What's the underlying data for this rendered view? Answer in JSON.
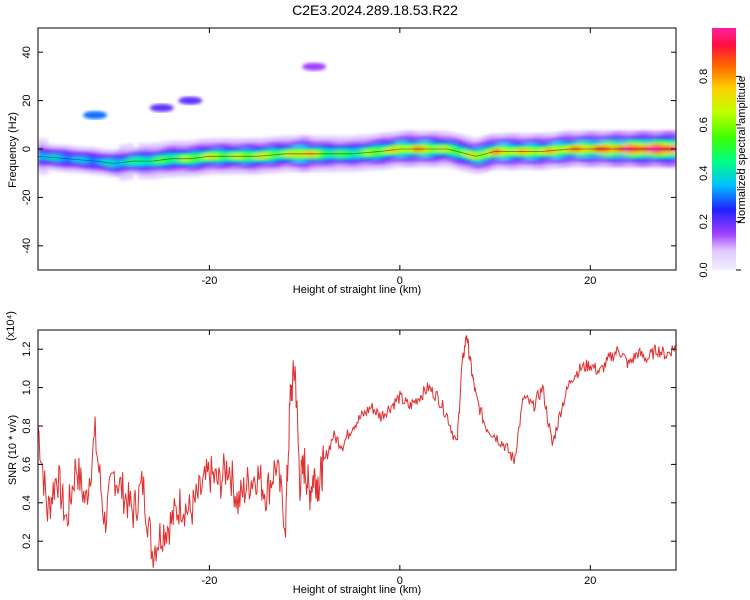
{
  "title": "C2E3.2024.289.18.53.R22",
  "chart_data": [
    {
      "type": "heatmap",
      "xlabel": "Height of straight line (km)",
      "ylabel": "Frequency (Hz)",
      "xlim": [
        -38,
        29
      ],
      "ylim": [
        -50,
        50
      ],
      "x_ticks": [
        -20,
        0,
        20
      ],
      "x_tick_labels": [
        "-20",
        "0",
        "20"
      ],
      "y_ticks": [
        40,
        20,
        0,
        -20,
        -40
      ],
      "y_tick_labels": [
        "40",
        "20",
        "0",
        "-20",
        "-40"
      ],
      "grid": false,
      "colorbar": {
        "label": "Normalized spectral amplitude",
        "range": [
          0,
          1
        ],
        "ticks": [
          0.0,
          0.2,
          0.4,
          0.6,
          0.8
        ],
        "tick_labels": [
          "0.0",
          "0.2",
          "0.4",
          "0.6",
          "0.8"
        ]
      },
      "ridge": {
        "x": [
          -38,
          -35,
          -32,
          -30,
          -28,
          -26,
          -24,
          -22,
          -20,
          -18,
          -15,
          -12,
          -10,
          -8,
          -5,
          -2,
          0,
          2,
          5,
          8,
          10,
          12,
          15,
          18,
          20,
          22,
          25,
          28
        ],
        "freq": [
          -3,
          -4,
          -5,
          -6,
          -5,
          -5,
          -4,
          -4,
          -3,
          -3,
          -3,
          -2,
          -2,
          -2,
          -2,
          -1,
          0,
          0,
          0,
          -3,
          -1,
          -1,
          -1,
          0,
          0,
          0,
          0,
          0
        ],
        "amp": [
          0.4,
          0.35,
          0.35,
          0.4,
          0.45,
          0.5,
          0.55,
          0.6,
          0.65,
          0.6,
          0.65,
          0.6,
          0.8,
          0.55,
          0.5,
          0.65,
          0.7,
          0.75,
          0.6,
          0.65,
          0.75,
          0.7,
          0.7,
          0.75,
          0.8,
          0.85,
          0.95,
          1.0
        ]
      },
      "blobs": [
        {
          "x": -32,
          "freq": 14,
          "amp": 0.3
        },
        {
          "x": -25,
          "freq": 17,
          "amp": 0.2
        },
        {
          "x": -22,
          "freq": 20,
          "amp": 0.2
        },
        {
          "x": -9,
          "freq": 34,
          "amp": 0.15
        }
      ]
    },
    {
      "type": "line",
      "xlabel": "Height of straight line (km)",
      "ylabel": "SNR (10 * v/v)",
      "y_multiplier": "(x10⁴)",
      "xlim": [
        -38,
        29
      ],
      "ylim": [
        0.05,
        1.3
      ],
      "x_ticks": [
        -20,
        0,
        20
      ],
      "x_tick_labels": [
        "-20",
        "0",
        "20"
      ],
      "y_ticks": [
        0.2,
        0.4,
        0.6,
        0.8,
        1.0,
        1.2
      ],
      "y_tick_labels": [
        "0.2",
        "0.4",
        "0.6",
        "0.8",
        "1.0",
        "1.2"
      ],
      "grid": false,
      "series": [
        {
          "color": "#e03030",
          "x": [
            -38,
            -37,
            -36,
            -35,
            -34,
            -33,
            -32,
            -31,
            -30,
            -29,
            -28,
            -27,
            -26,
            -25,
            -24,
            -23,
            -22,
            -21,
            -20,
            -19,
            -18,
            -17,
            -16,
            -15,
            -14,
            -13,
            -12,
            -11.5,
            -11,
            -10.5,
            -10,
            -9.5,
            -9,
            -8.5,
            -8,
            -7,
            -6,
            -5,
            -4,
            -3,
            -2,
            -1,
            0,
            1,
            2,
            3,
            4,
            5,
            6,
            6.5,
            7,
            7.5,
            8,
            9,
            10,
            11,
            12,
            13,
            14,
            15,
            16,
            17,
            18,
            19,
            20,
            21,
            22,
            23,
            24,
            25,
            26,
            27,
            28,
            29
          ],
          "values": [
            0.8,
            0.35,
            0.55,
            0.3,
            0.6,
            0.4,
            0.75,
            0.3,
            0.55,
            0.45,
            0.35,
            0.5,
            0.15,
            0.25,
            0.3,
            0.4,
            0.35,
            0.45,
            0.55,
            0.5,
            0.6,
            0.4,
            0.5,
            0.55,
            0.45,
            0.6,
            0.3,
            0.95,
            1.1,
            0.5,
            0.6,
            0.45,
            0.55,
            0.5,
            0.6,
            0.75,
            0.7,
            0.8,
            0.85,
            0.9,
            0.85,
            0.9,
            0.95,
            0.9,
            0.95,
            1.0,
            0.95,
            0.85,
            0.7,
            1.1,
            1.28,
            1.1,
            0.95,
            0.8,
            0.75,
            0.7,
            0.62,
            0.95,
            0.9,
            1.0,
            0.7,
            0.9,
            1.05,
            1.1,
            1.12,
            1.08,
            1.15,
            1.2,
            1.12,
            1.18,
            1.15,
            1.2,
            1.17,
            1.22
          ]
        }
      ]
    }
  ]
}
